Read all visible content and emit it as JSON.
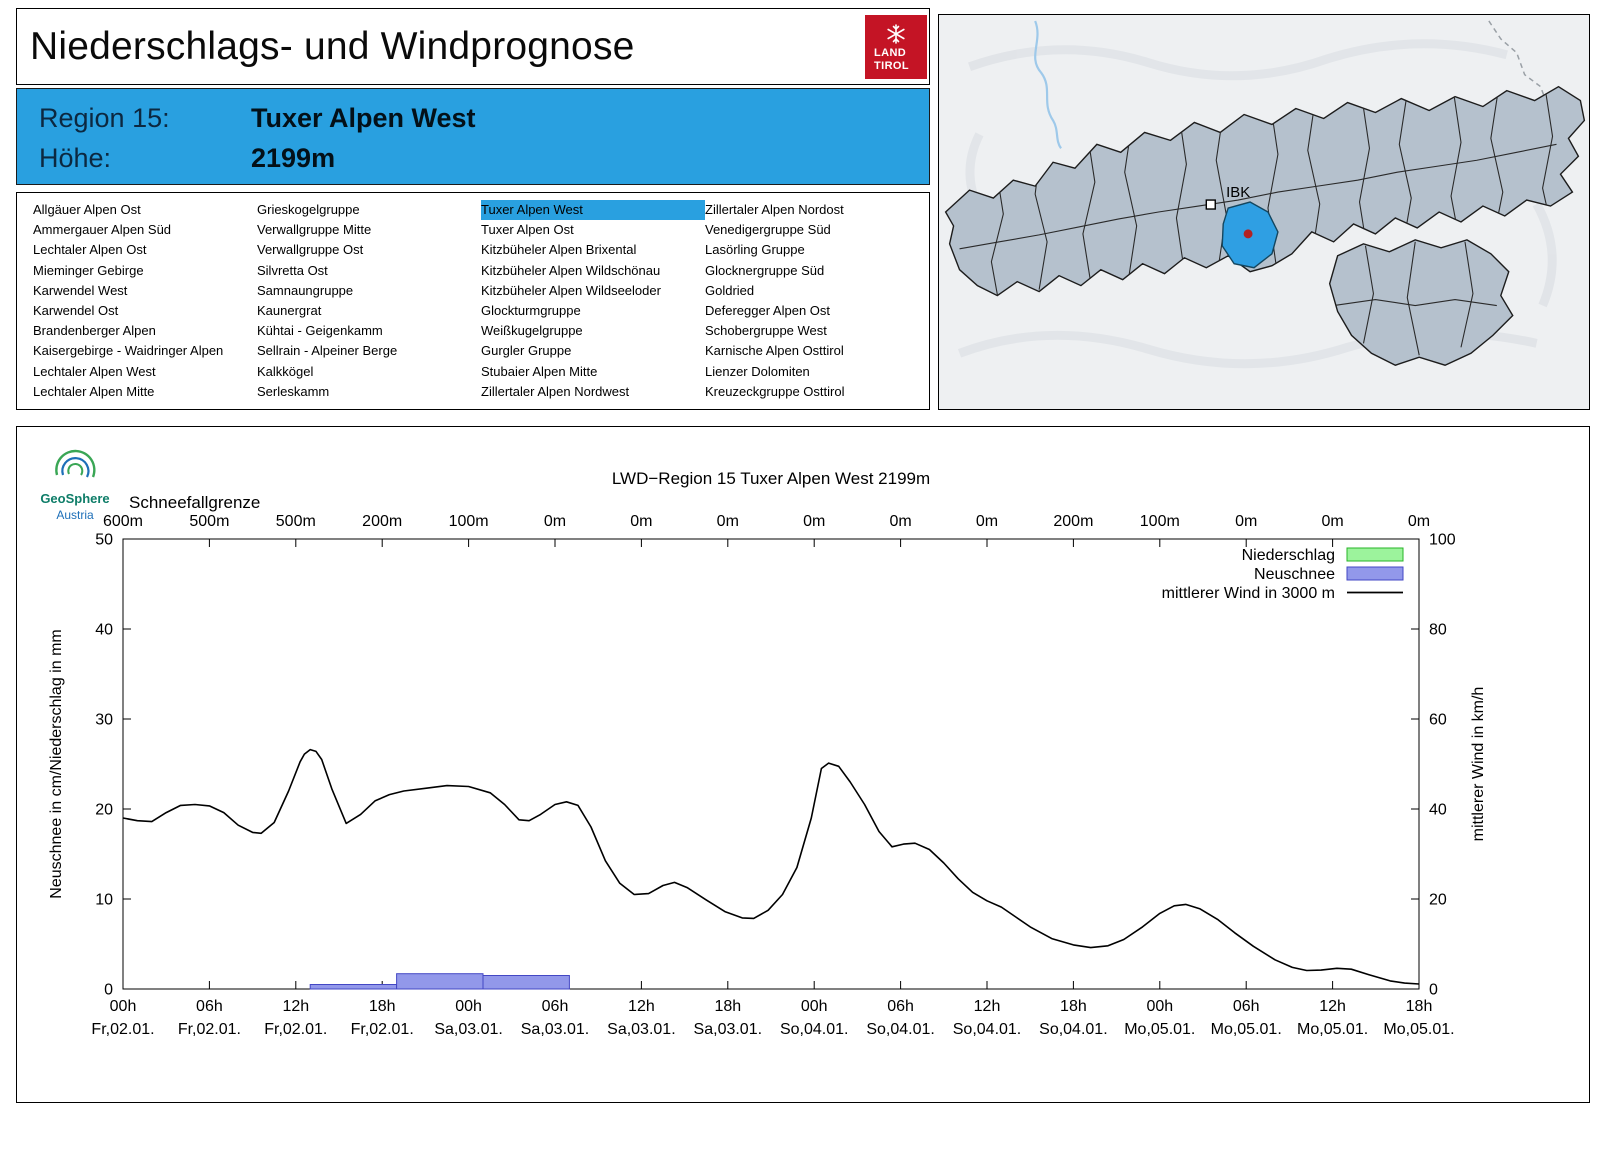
{
  "header": {
    "title": "Niederschlags- und Windprognose",
    "logo": {
      "line1": "LAND",
      "line2": "TIROL",
      "bg_color": "#c41425"
    }
  },
  "region_info": {
    "bg_color": "#29a0e0",
    "rows": [
      {
        "label": "Region 15:",
        "value": "Tuxer Alpen West"
      },
      {
        "label": "Höhe:",
        "value": "2199m"
      }
    ]
  },
  "region_list": {
    "selected": "Tuxer Alpen West",
    "highlight_color": "#29a0e0",
    "columns": [
      [
        "Allgäuer Alpen Ost",
        "Ammergauer Alpen Süd",
        "Lechtaler Alpen Ost",
        "Mieminger Gebirge",
        "Karwendel West",
        "Karwendel Ost",
        "Brandenberger Alpen",
        "Kaisergebirge - Waidringer Alpen",
        "Lechtaler Alpen West",
        "Lechtaler Alpen Mitte"
      ],
      [
        "Grieskogelgruppe",
        "Verwallgruppe Mitte",
        "Verwallgruppe Ost",
        "Silvretta Ost",
        "Samnaungruppe",
        "Kaunergrat",
        "Kühtai - Geigenkamm",
        "Sellrain - Alpeiner Berge",
        "Kalkkögel",
        "Serleskamm"
      ],
      [
        "Tuxer Alpen West",
        "Tuxer Alpen Ost",
        "Kitzbüheler Alpen Brixental",
        "Kitzbüheler Alpen Wildschönau",
        "Kitzbüheler Alpen Wildseeloder",
        "Glockturmgruppe",
        "Weißkugelgruppe",
        "Gurgler Gruppe",
        "Stubaier Alpen Mitte",
        "Zillertaler Alpen Nordwest"
      ],
      [
        "Zillertaler Alpen Nordost",
        "Venedigergruppe Süd",
        "Lasörling Gruppe",
        "Glocknergruppe Süd",
        "Goldried",
        "Deferegger Alpen Ost",
        "Schobergruppe West",
        "Karnische Alpen Osttirol",
        "Lienzer Dolomiten",
        "Kreuzeckgruppe Osttirol"
      ]
    ]
  },
  "map": {
    "marker_label": "IBK",
    "region_fill": "#b5c1cd",
    "highlight_fill": "#2f9fe3",
    "dot_color": "#b22222"
  },
  "chart": {
    "brand_name": "GeoSphere",
    "brand_sub": "Austria",
    "snowline_label": "Schneefallgrenze"
  },
  "chart_data": {
    "type": "line+bar",
    "title": "LWD−Region 15 Tuxer Alpen West 2199m",
    "ylabel_left": "Neuschnee in cm/Niederschlag in mm",
    "ylabel_right": "mittlerer Wind in km/h",
    "ylim_left": [
      0,
      50
    ],
    "yticks_left": [
      0,
      10,
      20,
      30,
      40,
      50
    ],
    "ylim_right": [
      0,
      100
    ],
    "yticks_right": [
      0,
      20,
      40,
      60,
      80,
      100
    ],
    "grid": false,
    "legend_position": "top-right",
    "x_hours_total": 90,
    "x_ticks": [
      {
        "hour": 0,
        "label": "00h",
        "date": "Fr,02.01."
      },
      {
        "hour": 6,
        "label": "06h",
        "date": "Fr,02.01."
      },
      {
        "hour": 12,
        "label": "12h",
        "date": "Fr,02.01."
      },
      {
        "hour": 18,
        "label": "18h",
        "date": "Fr,02.01."
      },
      {
        "hour": 24,
        "label": "00h",
        "date": "Sa,03.01."
      },
      {
        "hour": 30,
        "label": "06h",
        "date": "Sa,03.01."
      },
      {
        "hour": 36,
        "label": "12h",
        "date": "Sa,03.01."
      },
      {
        "hour": 42,
        "label": "18h",
        "date": "Sa,03.01."
      },
      {
        "hour": 48,
        "label": "00h",
        "date": "So,04.01."
      },
      {
        "hour": 54,
        "label": "06h",
        "date": "So,04.01."
      },
      {
        "hour": 60,
        "label": "12h",
        "date": "So,04.01."
      },
      {
        "hour": 66,
        "label": "18h",
        "date": "So,04.01."
      },
      {
        "hour": 72,
        "label": "00h",
        "date": "Mo,05.01."
      },
      {
        "hour": 78,
        "label": "06h",
        "date": "Mo,05.01."
      },
      {
        "hour": 84,
        "label": "12h",
        "date": "Mo,05.01."
      },
      {
        "hour": 90,
        "label": "18h",
        "date": "Mo,05.01."
      }
    ],
    "snowline_values": [
      "600m",
      "500m",
      "500m",
      "200m",
      "100m",
      "0m",
      "0m",
      "0m",
      "0m",
      "0m",
      "0m",
      "200m",
      "100m",
      "0m",
      "0m",
      "0m"
    ],
    "legend": [
      {
        "label": "Niederschlag",
        "swatch": "box",
        "fill": "#9cf39c",
        "stroke": "#27b427"
      },
      {
        "label": "Neuschnee",
        "swatch": "box",
        "fill": "#9298ea",
        "stroke": "#4347c4"
      },
      {
        "label": "mittlerer Wind in 3000 m",
        "swatch": "line",
        "stroke": "#000000"
      }
    ],
    "niederschlag_bars_mm": [],
    "neuschnee_bars": [
      {
        "from_hour": 13,
        "to_hour": 19,
        "cm": 0.5
      },
      {
        "from_hour": 19,
        "to_hour": 25,
        "cm": 1.7
      },
      {
        "from_hour": 25,
        "to_hour": 31,
        "cm": 1.5
      }
    ],
    "wind_kmh_points": [
      [
        0,
        38
      ],
      [
        1,
        37.4
      ],
      [
        2,
        37.2
      ],
      [
        3,
        39.2
      ],
      [
        4,
        40.8
      ],
      [
        5,
        41
      ],
      [
        6,
        40.7
      ],
      [
        7,
        39.2
      ],
      [
        8,
        36.4
      ],
      [
        9,
        34.8
      ],
      [
        9.6,
        34.6
      ],
      [
        10.5,
        37
      ],
      [
        11.5,
        44
      ],
      [
        12.3,
        50.5
      ],
      [
        12.6,
        52.2
      ],
      [
        13,
        53.2
      ],
      [
        13.4,
        52.8
      ],
      [
        13.8,
        51
      ],
      [
        14.5,
        44.5
      ],
      [
        15.5,
        36.8
      ],
      [
        16.5,
        38.8
      ],
      [
        17.5,
        41.8
      ],
      [
        18.5,
        43.2
      ],
      [
        19.5,
        44
      ],
      [
        21,
        44.6
      ],
      [
        22.5,
        45.2
      ],
      [
        24,
        45
      ],
      [
        25.5,
        43.6
      ],
      [
        26.5,
        41
      ],
      [
        27.5,
        37.6
      ],
      [
        28.2,
        37.4
      ],
      [
        29,
        38.8
      ],
      [
        30,
        41
      ],
      [
        30.8,
        41.6
      ],
      [
        31.6,
        40.8
      ],
      [
        32.5,
        36
      ],
      [
        33.5,
        28.5
      ],
      [
        34.5,
        23.5
      ],
      [
        35.5,
        21
      ],
      [
        36.5,
        21.2
      ],
      [
        37.5,
        23
      ],
      [
        38.3,
        23.7
      ],
      [
        39.2,
        22.5
      ],
      [
        40.5,
        19.8
      ],
      [
        41.8,
        17.2
      ],
      [
        43,
        15.8
      ],
      [
        43.8,
        15.7
      ],
      [
        44.8,
        17.5
      ],
      [
        45.8,
        21
      ],
      [
        46.8,
        27
      ],
      [
        47.8,
        38
      ],
      [
        48.5,
        49
      ],
      [
        49,
        50.2
      ],
      [
        49.7,
        49.5
      ],
      [
        50.5,
        46
      ],
      [
        51.5,
        41
      ],
      [
        52.5,
        35
      ],
      [
        53.4,
        31.6
      ],
      [
        54.2,
        32.2
      ],
      [
        55,
        32.4
      ],
      [
        56,
        31
      ],
      [
        57,
        28
      ],
      [
        58,
        24.5
      ],
      [
        59,
        21.5
      ],
      [
        60,
        19.6
      ],
      [
        61,
        18.2
      ],
      [
        62,
        16
      ],
      [
        63,
        13.8
      ],
      [
        64.5,
        11.2
      ],
      [
        66,
        9.8
      ],
      [
        67.2,
        9.2
      ],
      [
        68.4,
        9.6
      ],
      [
        69.5,
        11
      ],
      [
        70.8,
        13.8
      ],
      [
        72,
        16.8
      ],
      [
        73,
        18.5
      ],
      [
        73.8,
        18.8
      ],
      [
        74.8,
        17.8
      ],
      [
        76,
        15.5
      ],
      [
        77.2,
        12.5
      ],
      [
        78.5,
        9.5
      ],
      [
        80,
        6.5
      ],
      [
        81.2,
        4.8
      ],
      [
        82.2,
        4.1
      ],
      [
        83.2,
        4.2
      ],
      [
        84.3,
        4.6
      ],
      [
        85.3,
        4.4
      ],
      [
        86.5,
        3.2
      ],
      [
        88,
        1.8
      ],
      [
        89,
        1.3
      ],
      [
        90,
        1.1
      ]
    ]
  }
}
